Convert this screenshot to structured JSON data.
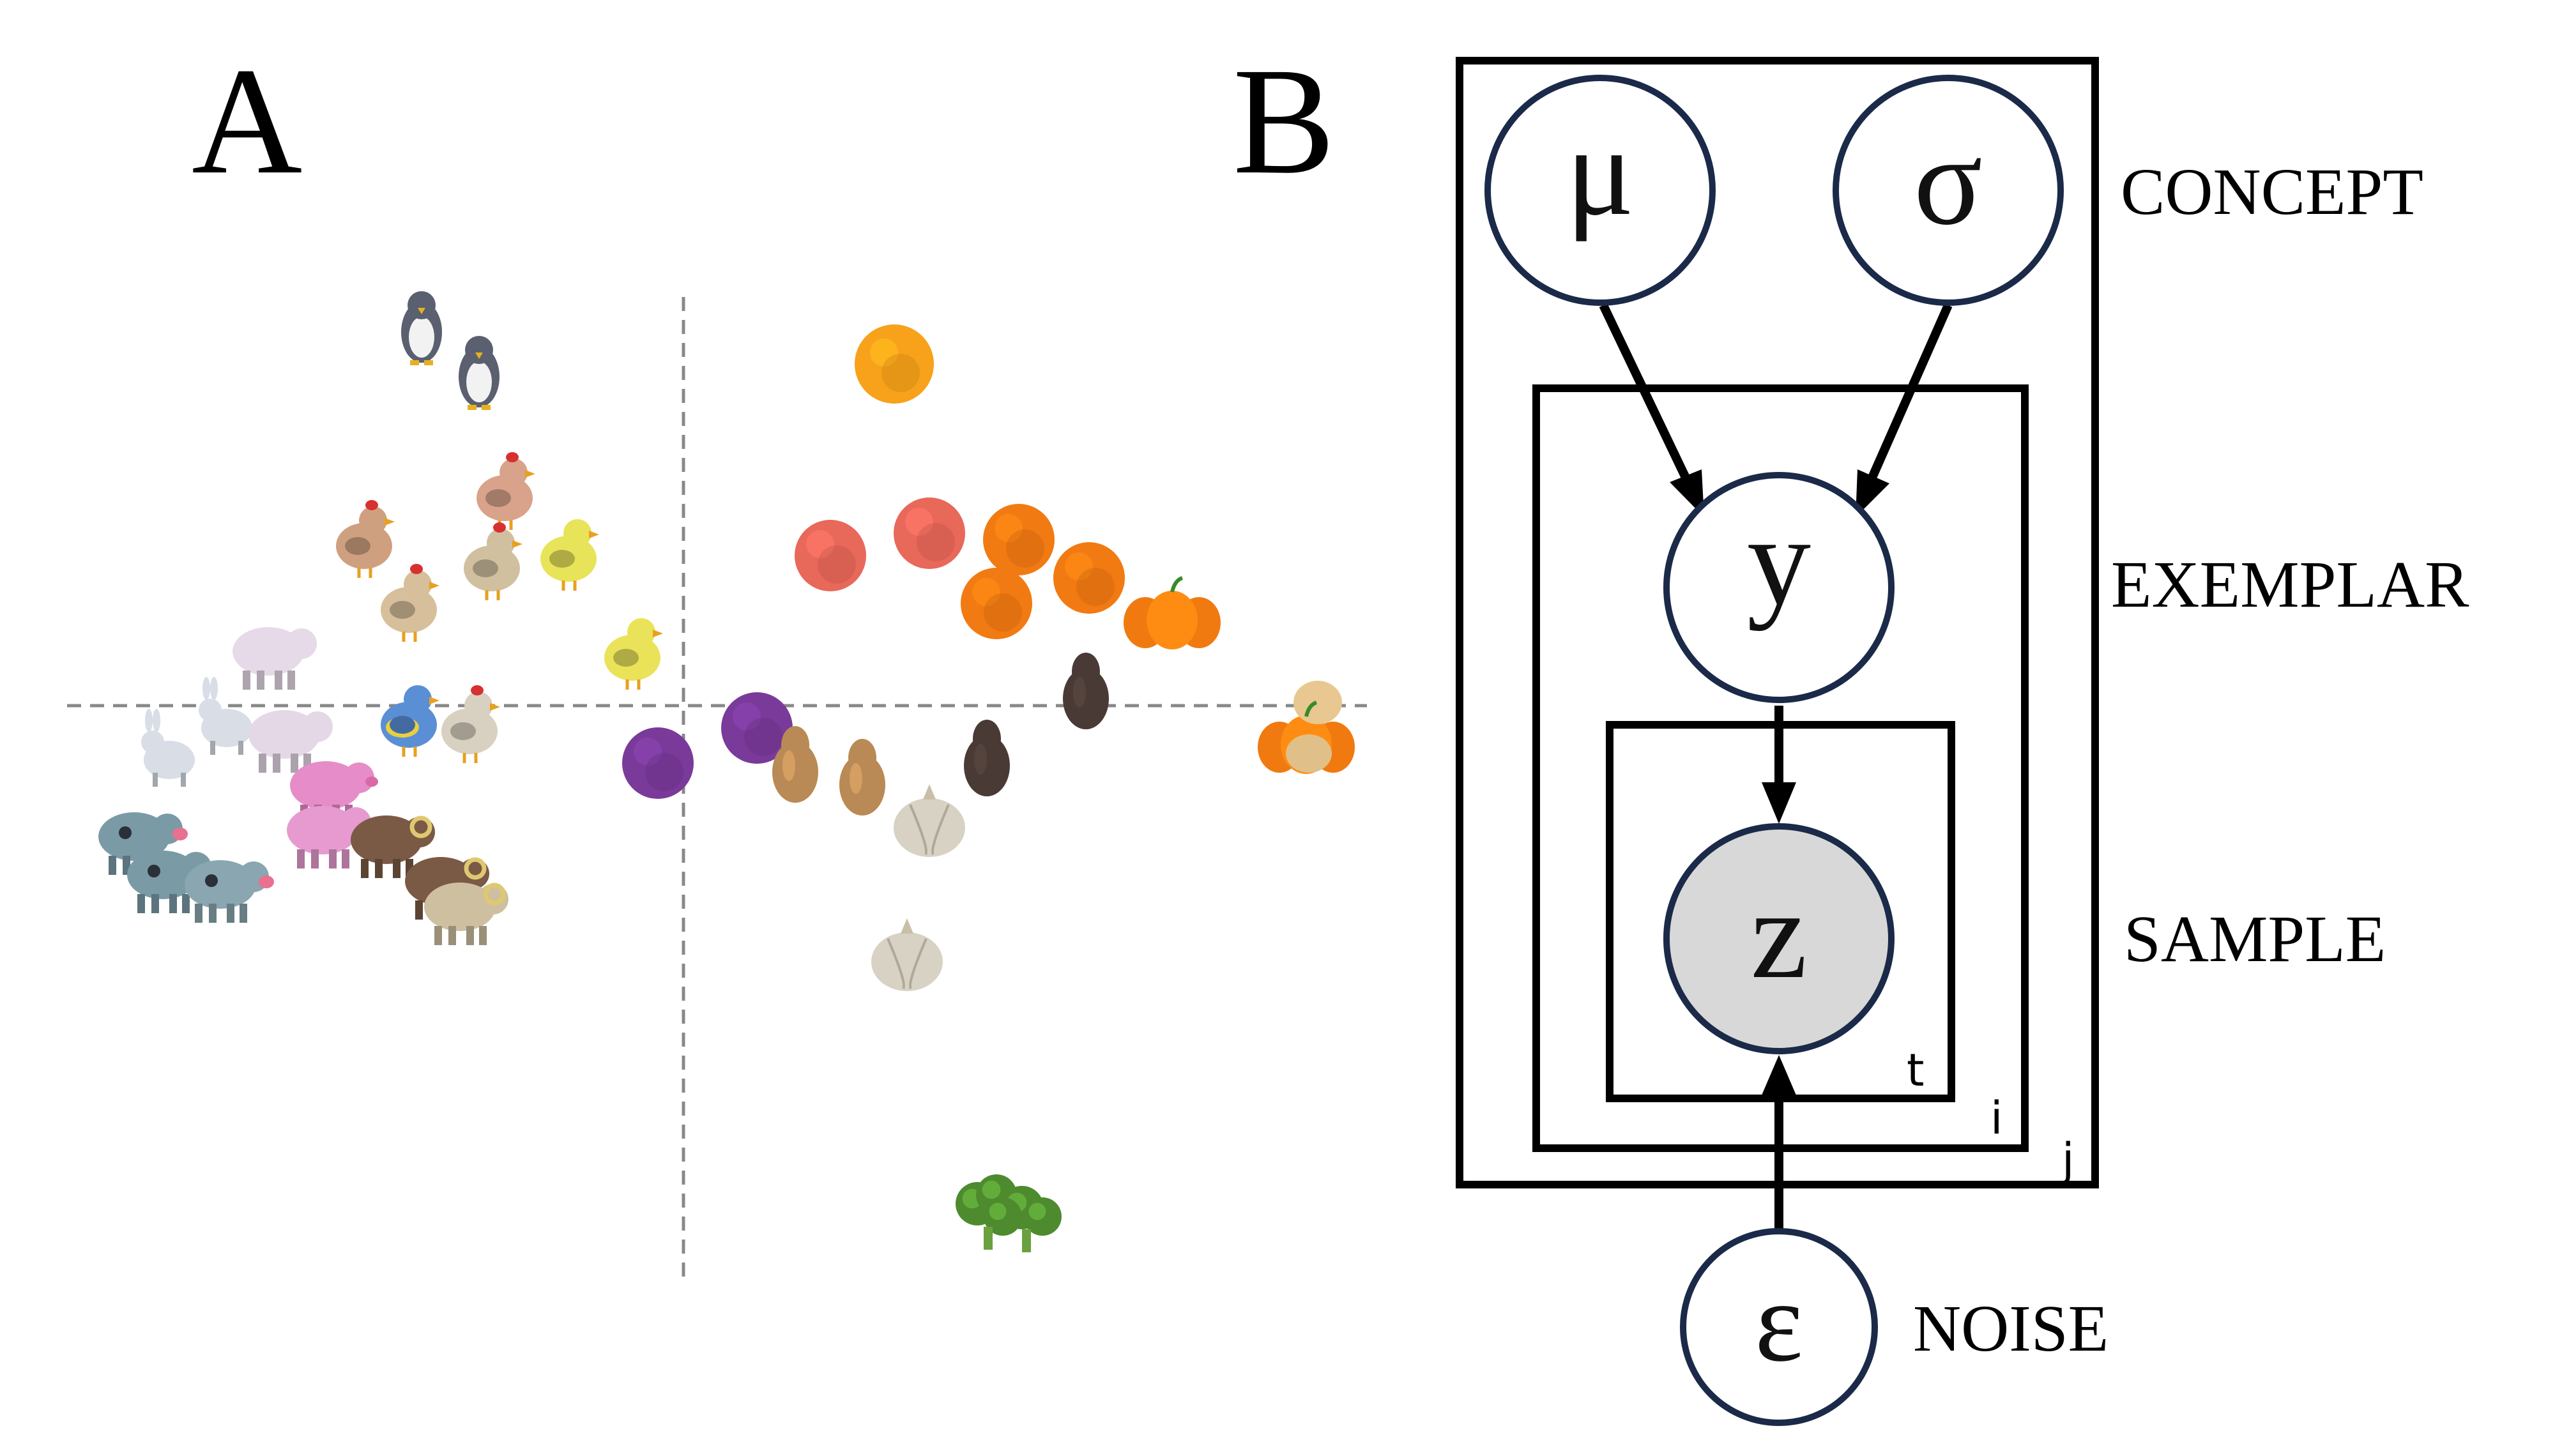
{
  "panel_a": {
    "letter": "A",
    "categories": {
      "animals": [
        {
          "kind": "penguin",
          "color": "#5a6070"
        },
        {
          "kind": "penguin",
          "color": "#5a6070"
        },
        {
          "kind": "chicken",
          "color": "#d8a38a"
        },
        {
          "kind": "chicken",
          "color": "#cfa080"
        },
        {
          "kind": "chick",
          "color": "#e8e45a"
        },
        {
          "kind": "chicken",
          "color": "#d0c0a0"
        },
        {
          "kind": "chicken",
          "color": "#d6bf9a"
        },
        {
          "kind": "chick",
          "color": "#eae35a"
        },
        {
          "kind": "parrot",
          "color": "#5a8fd6"
        },
        {
          "kind": "chicken",
          "color": "#d8d0c0"
        },
        {
          "kind": "sheep",
          "color": "#e6dae8"
        },
        {
          "kind": "rabbit",
          "color": "#d8dde6"
        },
        {
          "kind": "rabbit",
          "color": "#d8dde6"
        },
        {
          "kind": "sheep",
          "color": "#e4d8e6"
        },
        {
          "kind": "pig",
          "color": "#e68cc8"
        },
        {
          "kind": "pig",
          "color": "#e69ad0"
        },
        {
          "kind": "cow",
          "color": "#7a9aa6"
        },
        {
          "kind": "cow",
          "color": "#7a9aa6"
        },
        {
          "kind": "cow",
          "color": "#8aa6b0"
        },
        {
          "kind": "ram",
          "color": "#7a5a45"
        },
        {
          "kind": "ram",
          "color": "#7a5a45"
        },
        {
          "kind": "ram",
          "color": "#cdbfa0"
        }
      ],
      "produce": [
        {
          "kind": "orange",
          "color": "#f7a21a"
        },
        {
          "kind": "peach",
          "color": "#e8685a"
        },
        {
          "kind": "peach",
          "color": "#e8685a"
        },
        {
          "kind": "orange",
          "color": "#f27a12"
        },
        {
          "kind": "orange",
          "color": "#f27a12"
        },
        {
          "kind": "orange",
          "color": "#f27a12"
        },
        {
          "kind": "pumpkin",
          "color": "#f07a10"
        },
        {
          "kind": "plum",
          "color": "#7a3a9a"
        },
        {
          "kind": "plum",
          "color": "#7a3a9a"
        },
        {
          "kind": "squash",
          "color": "#b98a55"
        },
        {
          "kind": "squash",
          "color": "#b98a55"
        },
        {
          "kind": "eggplant",
          "color": "#4a3a36"
        },
        {
          "kind": "eggplant",
          "color": "#4a3a36"
        },
        {
          "kind": "gourd",
          "color": "#f07a10"
        },
        {
          "kind": "garlic",
          "color": "#d8d2c4"
        },
        {
          "kind": "garlic",
          "color": "#d8d2c4"
        },
        {
          "kind": "broccoli",
          "color": "#4e8a2e"
        }
      ]
    },
    "axis_color": "#888888"
  },
  "panel_b": {
    "letter": "B",
    "nodes": {
      "mu": {
        "symbol": "μ",
        "fill": "#ffffff",
        "observed": false
      },
      "sigma": {
        "symbol": "σ",
        "fill": "#ffffff",
        "observed": false
      },
      "y": {
        "symbol": "y",
        "fill": "#ffffff",
        "observed": false
      },
      "z": {
        "symbol": "z",
        "fill": "#d8d8d8",
        "observed": true
      },
      "epsilon": {
        "symbol": "ε",
        "fill": "#ffffff",
        "observed": false
      }
    },
    "edges": [
      {
        "from": "mu",
        "to": "y"
      },
      {
        "from": "sigma",
        "to": "y"
      },
      {
        "from": "y",
        "to": "z"
      },
      {
        "from": "epsilon",
        "to": "z"
      }
    ],
    "plates": {
      "outer": "j",
      "middle": "i",
      "inner": "t"
    },
    "labels": {
      "concept": "CONCEPT",
      "exemplar": "EXEMPLAR",
      "sample": "SAMPLE",
      "noise": "NOISE"
    },
    "node_stroke": "#1a2a48"
  }
}
